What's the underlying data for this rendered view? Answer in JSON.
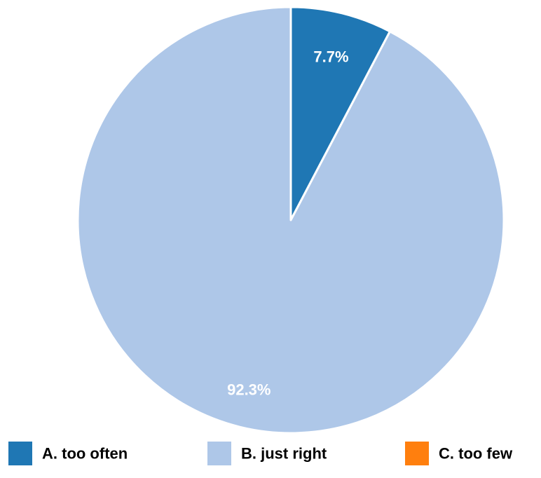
{
  "chart_data": {
    "type": "pie",
    "categories": [
      "A. too often",
      "B. just right",
      "C. too few"
    ],
    "values": [
      7.7,
      92.3,
      0
    ],
    "data_labels": [
      "7.7%",
      "92.3%",
      ""
    ],
    "colors": [
      "#1f77b4",
      "#aec7e8",
      "#ff7f0e"
    ],
    "legend_position": "bottom",
    "start_angle": "12 o'clock, clockwise"
  }
}
